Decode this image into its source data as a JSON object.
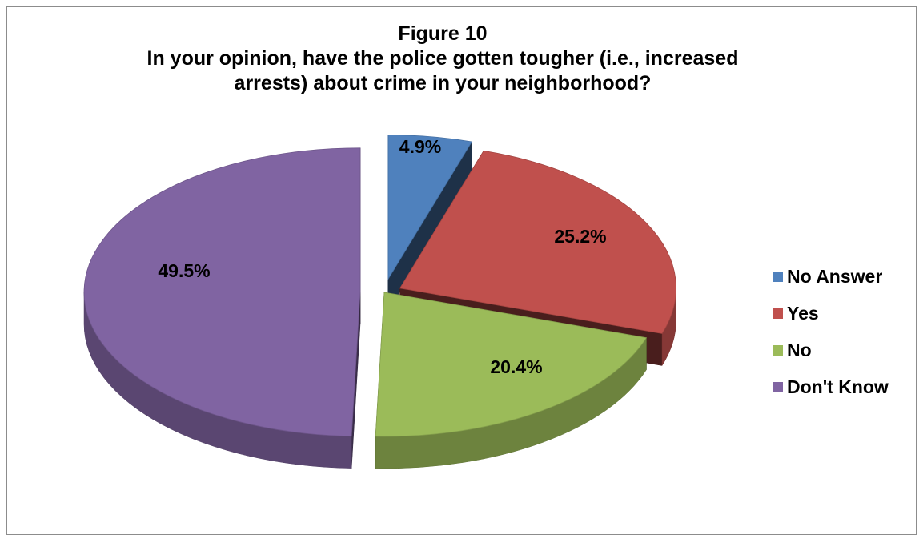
{
  "chart_data": {
    "type": "pie",
    "title_line1": "Figure 10",
    "title_line2": "In your opinion, have the police gotten tougher (i.e., increased",
    "title_line3": "arrests) about crime in your neighborhood?",
    "categories": [
      "No Answer",
      "Yes",
      "No",
      "Don't Know"
    ],
    "values": [
      4.9,
      25.2,
      20.4,
      49.5
    ],
    "labels": [
      "4.9%",
      "25.2%",
      "20.4%",
      "49.5%"
    ],
    "colors": [
      "#4F81BD",
      "#C0504D",
      "#9BBB59",
      "#8064A2"
    ],
    "legend_position": "right",
    "style": "3d-exploded"
  }
}
